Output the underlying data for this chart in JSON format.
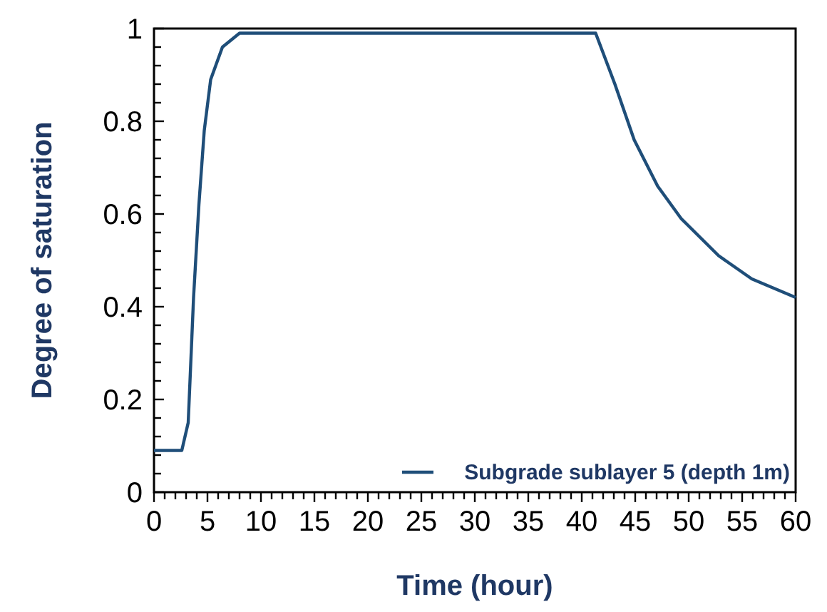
{
  "chart_data": {
    "type": "line",
    "xlabel": "Time (hour)",
    "ylabel": "Degree of saturation",
    "xlim": [
      0,
      60
    ],
    "ylim": [
      0,
      1
    ],
    "xticks": [
      0,
      {
        "value": 1,
        "label": null
      },
      {
        "value": 2,
        "label": null
      },
      {
        "value": 3,
        "label": null
      },
      {
        "value": 4,
        "label": null
      },
      5,
      {
        "value": 6,
        "label": null
      },
      {
        "value": 7,
        "label": null
      },
      {
        "value": 8,
        "label": null
      },
      {
        "value": 9,
        "label": null
      },
      10,
      {
        "value": 11,
        "label": null
      },
      {
        "value": 12,
        "label": null
      },
      {
        "value": 13,
        "label": null
      },
      {
        "value": 14,
        "label": null
      },
      15,
      {
        "value": 16,
        "label": null
      },
      {
        "value": 17,
        "label": null
      },
      {
        "value": 18,
        "label": null
      },
      {
        "value": 19,
        "label": null
      },
      20,
      {
        "value": 21,
        "label": null
      },
      {
        "value": 22,
        "label": null
      },
      {
        "value": 23,
        "label": null
      },
      {
        "value": 24,
        "label": null
      },
      25,
      {
        "value": 26,
        "label": null
      },
      {
        "value": 27,
        "label": null
      },
      {
        "value": 28,
        "label": null
      },
      {
        "value": 29,
        "label": null
      },
      30,
      {
        "value": 31,
        "label": null
      },
      {
        "value": 32,
        "label": null
      },
      {
        "value": 33,
        "label": null
      },
      {
        "value": 34,
        "label": null
      },
      35,
      {
        "value": 36,
        "label": null
      },
      {
        "value": 37,
        "label": null
      },
      {
        "value": 38,
        "label": null
      },
      {
        "value": 39,
        "label": null
      },
      40,
      {
        "value": 41,
        "label": null
      },
      {
        "value": 42,
        "label": null
      },
      {
        "value": 43,
        "label": null
      },
      {
        "value": 44,
        "label": null
      },
      45,
      {
        "value": 46,
        "label": null
      },
      {
        "value": 47,
        "label": null
      },
      {
        "value": 48,
        "label": null
      },
      {
        "value": 49,
        "label": null
      },
      50,
      {
        "value": 51,
        "label": null
      },
      {
        "value": 52,
        "label": null
      },
      {
        "value": 53,
        "label": null
      },
      {
        "value": 54,
        "label": null
      },
      55,
      {
        "value": 56,
        "label": null
      },
      {
        "value": 57,
        "label": null
      },
      {
        "value": 58,
        "label": null
      },
      {
        "value": 59,
        "label": null
      },
      60
    ],
    "yticks": [
      0,
      {
        "value": 0.04,
        "label": null
      },
      {
        "value": 0.08,
        "label": null
      },
      {
        "value": 0.12,
        "label": null
      },
      {
        "value": 0.16,
        "label": null
      },
      0.2,
      {
        "value": 0.24,
        "label": null
      },
      {
        "value": 0.28,
        "label": null
      },
      {
        "value": 0.32,
        "label": null
      },
      {
        "value": 0.36,
        "label": null
      },
      0.4,
      {
        "value": 0.44,
        "label": null
      },
      {
        "value": 0.48,
        "label": null
      },
      {
        "value": 0.52,
        "label": null
      },
      {
        "value": 0.56,
        "label": null
      },
      0.6,
      {
        "value": 0.64,
        "label": null
      },
      {
        "value": 0.68,
        "label": null
      },
      {
        "value": 0.72,
        "label": null
      },
      {
        "value": 0.76,
        "label": null
      },
      0.8,
      {
        "value": 0.84,
        "label": null
      },
      {
        "value": 0.88,
        "label": null
      },
      {
        "value": 0.92,
        "label": null
      },
      {
        "value": 0.96,
        "label": null
      },
      1
    ],
    "grid": false,
    "legend": "bottom right",
    "line_style": "solid",
    "marker": "none",
    "series": [
      {
        "name": "Subgrade sublayer 5 (depth 1m)",
        "color": "#1f4e79",
        "x": [
          0,
          1,
          2,
          2.6,
          3.2,
          3.7,
          4.2,
          4.7,
          5.3,
          6.4,
          8,
          10,
          15,
          20,
          25,
          30,
          35,
          40,
          41.3,
          43.1,
          44.9,
          47.1,
          49.3,
          52.8,
          55.9,
          60
        ],
        "values": [
          0.09,
          0.09,
          0.09,
          0.09,
          0.15,
          0.42,
          0.62,
          0.78,
          0.89,
          0.96,
          0.99,
          0.99,
          0.99,
          0.99,
          0.99,
          0.99,
          0.99,
          0.99,
          0.99,
          0.88,
          0.76,
          0.66,
          0.59,
          0.51,
          0.46,
          0.42
        ]
      }
    ]
  }
}
